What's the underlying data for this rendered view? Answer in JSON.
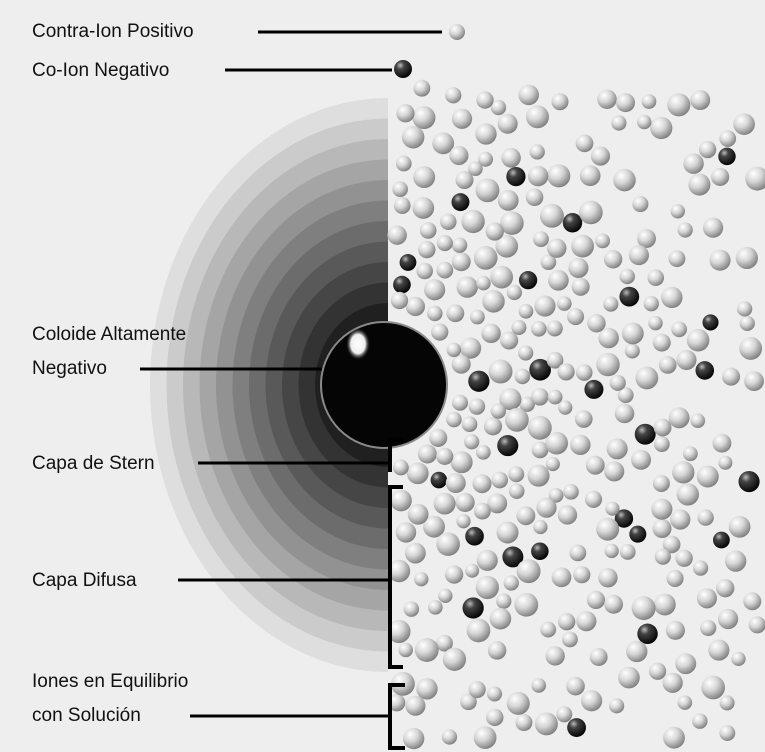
{
  "labels": [
    {
      "lines": [
        "Contra-Ion Positivo"
      ]
    },
    {
      "lines": [
        "Co-Ion Negativo"
      ]
    },
    {
      "lines": [
        "Coloide Altamente",
        "Negativo"
      ]
    },
    {
      "lines": [
        "Capa de Stern"
      ]
    },
    {
      "lines": [
        "Capa Difusa"
      ]
    },
    {
      "lines": [
        "Iones en Equilibrio",
        "con Solución"
      ]
    }
  ]
}
